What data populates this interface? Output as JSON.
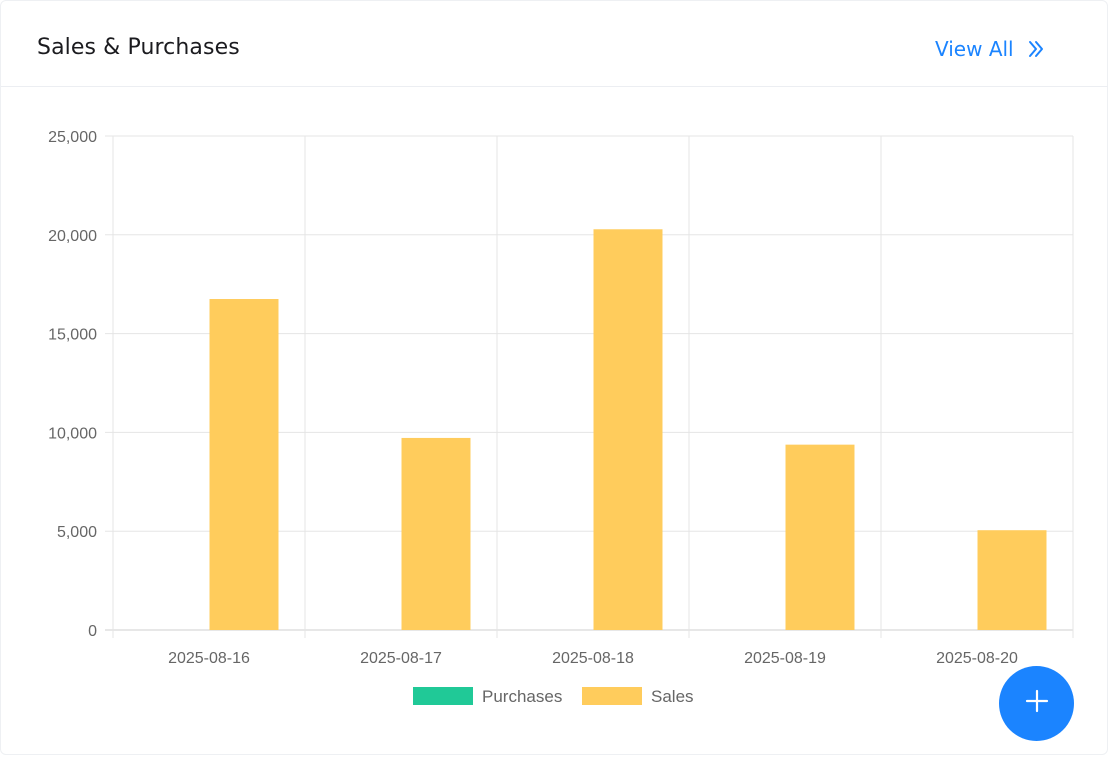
{
  "card": {
    "title": "Sales & Purchases",
    "view_all_label": "View All",
    "view_all_icon": "double-chevron-right-icon"
  },
  "fab": {
    "icon": "plus-icon",
    "color": "#1b84ff"
  },
  "colors": {
    "purchases": "#20c997",
    "sales": "#ffcc5c",
    "grid": "#e5e5e5",
    "link": "#1b84ff"
  },
  "chart_data": {
    "type": "bar",
    "title": "",
    "xlabel": "",
    "ylabel": "",
    "categories": [
      "2025-08-16",
      "2025-08-17",
      "2025-08-18",
      "2025-08-19",
      "2025-08-20"
    ],
    "series": [
      {
        "name": "Purchases",
        "values": [
          0,
          0,
          0,
          0,
          0
        ],
        "color": "#20c997"
      },
      {
        "name": "Sales",
        "values": [
          16750,
          9720,
          20280,
          9380,
          5050
        ],
        "color": "#ffcc5c"
      }
    ],
    "ylim": [
      0,
      25000
    ],
    "yticks": [
      "0",
      "5,000",
      "10,000",
      "15,000",
      "20,000",
      "25,000"
    ],
    "grid": true,
    "legend_position": "bottom"
  }
}
